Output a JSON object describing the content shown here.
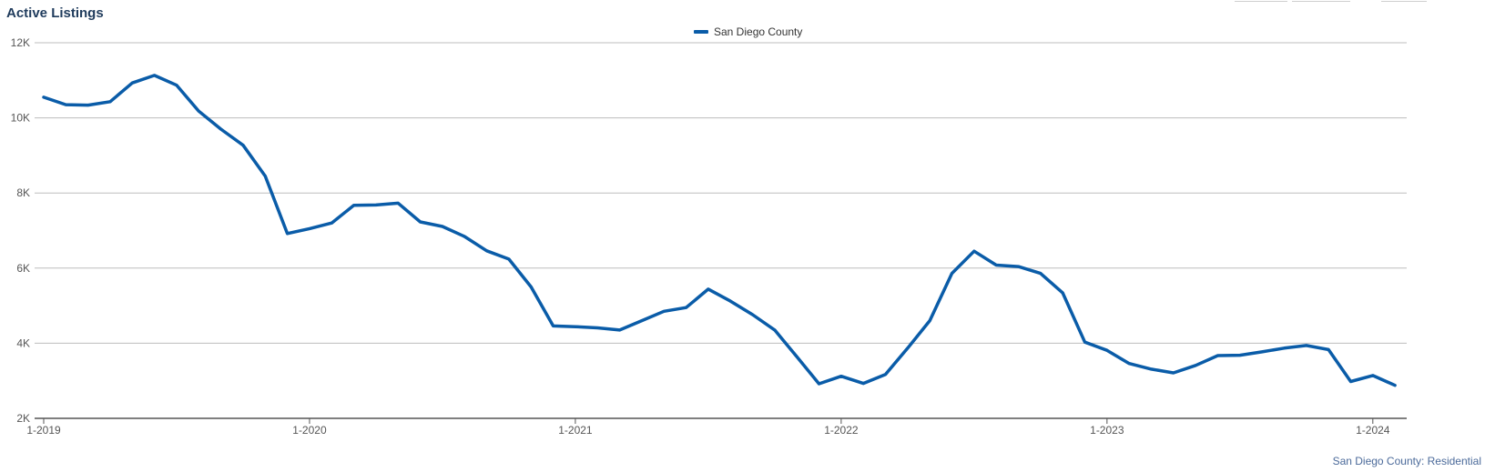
{
  "title": "Active Listings",
  "footer": "San Diego County: Residential",
  "colors": {
    "series": "#0a5ca8",
    "grid": "#bdbdbd",
    "axis": "#555555",
    "title": "#1f3b5c"
  },
  "chart_data": {
    "type": "line",
    "title": "Active Listings",
    "xlabel": "",
    "ylabel": "",
    "ylim": [
      2000,
      12000
    ],
    "yticks": [
      2000,
      4000,
      6000,
      8000,
      10000,
      12000
    ],
    "ytick_labels": [
      "2K",
      "4K",
      "6K",
      "8K",
      "10K",
      "12K"
    ],
    "xticks": [
      "1-2019",
      "1-2020",
      "1-2021",
      "1-2022",
      "1-2023",
      "1-2024"
    ],
    "grid": true,
    "legend": "top-center",
    "series": [
      {
        "name": "San Diego County",
        "x": [
          "1-2019",
          "2-2019",
          "3-2019",
          "4-2019",
          "5-2019",
          "6-2019",
          "7-2019",
          "8-2019",
          "9-2019",
          "10-2019",
          "11-2019",
          "12-2019",
          "1-2020",
          "2-2020",
          "3-2020",
          "4-2020",
          "5-2020",
          "6-2020",
          "7-2020",
          "8-2020",
          "9-2020",
          "10-2020",
          "11-2020",
          "12-2020",
          "1-2021",
          "2-2021",
          "3-2021",
          "4-2021",
          "5-2021",
          "6-2021",
          "7-2021",
          "8-2021",
          "9-2021",
          "10-2021",
          "11-2021",
          "12-2021",
          "1-2022",
          "2-2022",
          "3-2022",
          "4-2022",
          "5-2022",
          "6-2022",
          "7-2022",
          "8-2022",
          "9-2022",
          "10-2022",
          "11-2022",
          "12-2022",
          "1-2023",
          "2-2023",
          "3-2023",
          "4-2023",
          "5-2023",
          "6-2023",
          "7-2023",
          "8-2023",
          "9-2023",
          "10-2023",
          "11-2023",
          "12-2023",
          "1-2024",
          "2-2024"
        ],
        "values": [
          10550,
          10350,
          10340,
          10430,
          10930,
          11130,
          10870,
          10180,
          9700,
          9270,
          8450,
          6920,
          7050,
          7200,
          7670,
          7680,
          7730,
          7230,
          7110,
          6840,
          6460,
          6240,
          5500,
          4460,
          4440,
          4410,
          4350,
          4600,
          4850,
          4950,
          5440,
          5120,
          4760,
          4350,
          3640,
          2920,
          3120,
          2930,
          3170,
          3870,
          4600,
          5860,
          6450,
          6080,
          6040,
          5860,
          5340,
          4030,
          3810,
          3460,
          3310,
          3210,
          3410,
          3670,
          3680,
          3770,
          3870,
          3940,
          3830,
          2980,
          3140,
          2880
        ]
      }
    ]
  }
}
